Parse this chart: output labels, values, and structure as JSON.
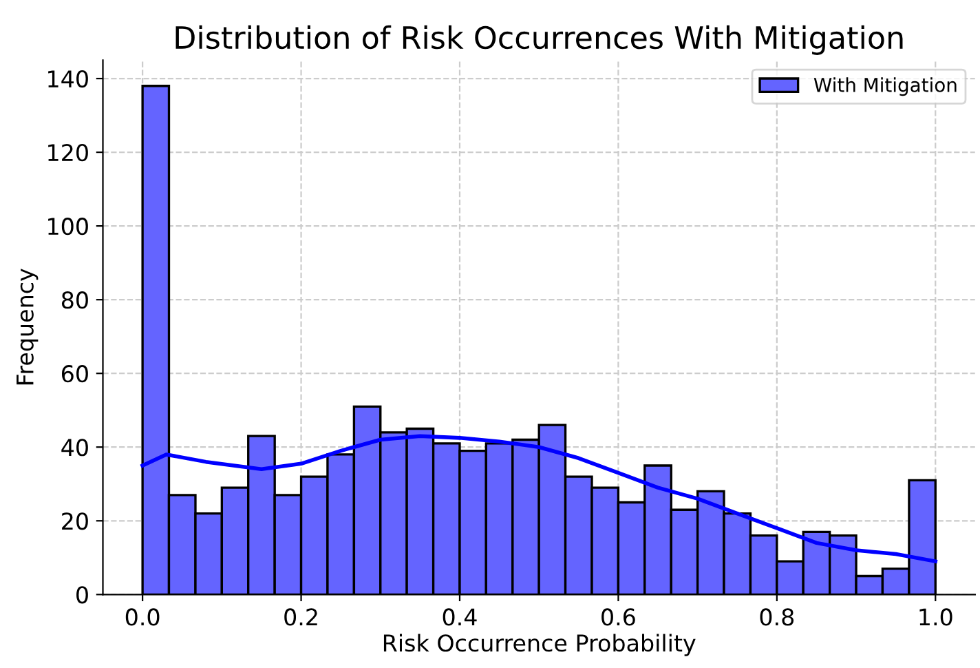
{
  "chart_data": {
    "type": "histogram",
    "title": "Distribution of Risk Occurrences With Mitigation",
    "xlabel": "Risk Occurrence Probability",
    "ylabel": "Frequency",
    "bins": [
      0,
      0.0333,
      0.0667,
      0.1,
      0.1333,
      0.1667,
      0.2,
      0.2333,
      0.2667,
      0.3,
      0.3333,
      0.3667,
      0.4,
      0.4333,
      0.4667,
      0.5,
      0.5333,
      0.5667,
      0.6,
      0.6333,
      0.6667,
      0.7,
      0.7333,
      0.7667,
      0.8,
      0.8333,
      0.8667,
      0.9,
      0.9333,
      0.9667,
      1
    ],
    "series": [
      {
        "name": "With Mitigation",
        "color": "#6464ff",
        "values": [
          138,
          27,
          22,
          29,
          43,
          27,
          32,
          38,
          51,
          44,
          45,
          41,
          39,
          41,
          42,
          46,
          32,
          29,
          25,
          35,
          23,
          28,
          22,
          16,
          9,
          17,
          16,
          5,
          7,
          31
        ]
      },
      {
        "type": "line",
        "color": "#0000ff",
        "x": [
          0,
          0.03,
          0.08,
          0.15,
          0.2,
          0.25,
          0.3,
          0.35,
          0.4,
          0.45,
          0.5,
          0.55,
          0.6,
          0.65,
          0.7,
          0.75,
          0.8,
          0.85,
          0.9,
          0.95,
          1.0
        ],
        "values": [
          35,
          38,
          36,
          34,
          35.5,
          39,
          42,
          43,
          42.5,
          41.5,
          40,
          37,
          33,
          29,
          26,
          22,
          18,
          14,
          12,
          11,
          9
        ]
      }
    ],
    "xlim": [
      -0.05,
      1.05
    ],
    "ylim": [
      0,
      145
    ],
    "xticks": [
      {
        "value": 0,
        "label": "0.0"
      },
      0.2,
      0.4,
      0.6,
      0.8,
      {
        "value": 1,
        "label": "1.0"
      }
    ],
    "yticks": [
      0,
      20,
      40,
      60,
      80,
      100,
      120,
      140
    ],
    "grid": true,
    "legend": "top right"
  }
}
